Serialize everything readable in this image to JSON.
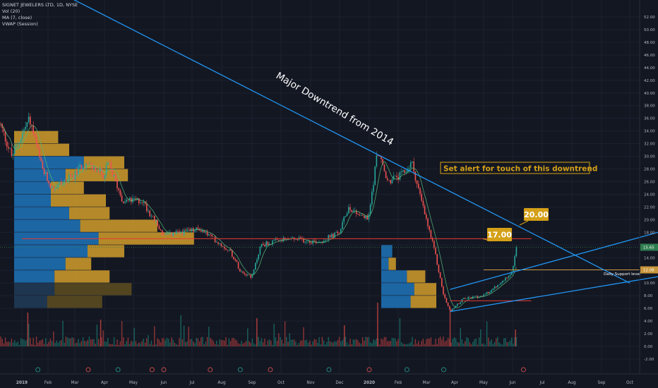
{
  "header": {
    "symbol": "SIGNET JEWELERS LTD, 1D, NYSE",
    "indicators": [
      "Vol (20)",
      "MA (7, close)",
      "VWAP (Session)"
    ]
  },
  "price_axis": {
    "ticks": [
      "52.00",
      "50.00",
      "48.00",
      "46.00",
      "44.00",
      "42.00",
      "40.00",
      "38.00",
      "36.00",
      "34.00",
      "32.00",
      "30.00",
      "28.00",
      "26.00",
      "24.00",
      "22.00",
      "20.00",
      "18.00",
      "16.00",
      "14.00",
      "12.00",
      "10.00",
      "8.00",
      "6.00",
      "4.00",
      "2.00",
      "0.00",
      "-2.00"
    ],
    "current_price": "15.65",
    "support_price": "12.08"
  },
  "time_axis": {
    "labels": [
      "2019",
      "Feb",
      "Mar",
      "Apr",
      "May",
      "Jun",
      "Jul",
      "Aug",
      "Sep",
      "Oct",
      "Nov",
      "Dec",
      "2020",
      "Feb",
      "Mar",
      "Apr",
      "May",
      "Jun",
      "Jul",
      "Aug",
      "Sep",
      "Oct"
    ]
  },
  "annotations": {
    "downtrend_label": "Major Downtrend from 2014",
    "alert_text": "Set alert for touch of this downtrend",
    "target_1": "17.00",
    "target_2": "20.00",
    "support_label": "Daily Support level"
  },
  "colors": {
    "background": "#131722",
    "up_candle": "#26a69a",
    "down_candle": "#ef5350",
    "trendline": "#2196f3",
    "resistance": "#e53935",
    "support": "#c8963c",
    "label_bg": "#d4a017",
    "vp_up": "#1e6fb3",
    "vp_down": "#c8962a",
    "ma": "#56b87a"
  },
  "chart_data": {
    "type": "candlestick",
    "symbol": "SIGNET JEWELERS LTD",
    "timeframe": "1D",
    "exchange": "NYSE",
    "y_range": [
      -3,
      54
    ],
    "price_path": [
      {
        "t": "2018-12-01",
        "price": 37
      },
      {
        "t": "2018-12-20",
        "price": 30
      },
      {
        "t": "2019-01-10",
        "price": 36
      },
      {
        "t": "2019-01-25",
        "price": 28
      },
      {
        "t": "2019-02-05",
        "price": 25
      },
      {
        "t": "2019-03-01",
        "price": 27
      },
      {
        "t": "2019-03-10",
        "price": 29
      },
      {
        "t": "2019-04-01",
        "price": 27
      },
      {
        "t": "2019-04-05",
        "price": 29
      },
      {
        "t": "2019-04-20",
        "price": 23
      },
      {
        "t": "2019-05-10",
        "price": 23
      },
      {
        "t": "2019-06-01",
        "price": 17.5
      },
      {
        "t": "2019-07-10",
        "price": 18.5
      },
      {
        "t": "2019-08-10",
        "price": 15
      },
      {
        "t": "2019-08-20",
        "price": 12
      },
      {
        "t": "2019-09-01",
        "price": 11
      },
      {
        "t": "2019-09-10",
        "price": 16
      },
      {
        "t": "2019-10-10",
        "price": 17
      },
      {
        "t": "2019-11-10",
        "price": 16.5
      },
      {
        "t": "2019-12-01",
        "price": 18
      },
      {
        "t": "2019-12-10",
        "price": 22
      },
      {
        "t": "2019-12-31",
        "price": 20
      },
      {
        "t": "2020-01-10",
        "price": 31
      },
      {
        "t": "2020-01-20",
        "price": 26
      },
      {
        "t": "2020-02-05",
        "price": 27
      },
      {
        "t": "2020-02-15",
        "price": 29
      },
      {
        "t": "2020-02-28",
        "price": 21
      },
      {
        "t": "2020-03-10",
        "price": 15
      },
      {
        "t": "2020-03-20",
        "price": 8
      },
      {
        "t": "2020-03-27",
        "price": 5.5
      },
      {
        "t": "2020-04-10",
        "price": 7.5
      },
      {
        "t": "2020-05-01",
        "price": 8
      },
      {
        "t": "2020-05-20",
        "price": 10
      },
      {
        "t": "2020-06-01",
        "price": 12
      },
      {
        "t": "2020-06-05",
        "price": 15.65
      }
    ],
    "volume_profile_2019": [
      {
        "price": 33,
        "up": 0.0,
        "down": 0.24
      },
      {
        "price": 31,
        "up": 0.0,
        "down": 0.3
      },
      {
        "price": 29,
        "up": 0.38,
        "down": 0.22
      },
      {
        "price": 27,
        "up": 0.28,
        "down": 0.34
      },
      {
        "price": 25,
        "up": 0.2,
        "down": 0.18
      },
      {
        "price": 23,
        "up": 0.2,
        "down": 0.3
      },
      {
        "price": 21,
        "up": 0.3,
        "down": 0.22
      },
      {
        "price": 19,
        "up": 0.36,
        "down": 0.42
      },
      {
        "price": 17,
        "up": 0.46,
        "down": 0.52
      },
      {
        "price": 15,
        "up": 0.4,
        "down": 0.2
      },
      {
        "price": 13,
        "up": 0.28,
        "down": 0.14
      },
      {
        "price": 11,
        "up": 0.22,
        "down": 0.3
      },
      {
        "price": 9,
        "up": 0.22,
        "down": 0.42
      },
      {
        "price": 7,
        "up": 0.18,
        "down": 0.3
      }
    ],
    "volume_profile_2020": [
      {
        "price": 15,
        "up": 0.06,
        "down": 0.0
      },
      {
        "price": 13,
        "up": 0.04,
        "down": 0.04
      },
      {
        "price": 11,
        "up": 0.14,
        "down": 0.1
      },
      {
        "price": 9,
        "up": 0.18,
        "down": 0.12
      },
      {
        "price": 7,
        "up": 0.16,
        "down": 0.14
      }
    ],
    "downtrend_line": [
      {
        "t": "2018-12-01",
        "price": 61
      },
      {
        "t": "2020-10-01",
        "price": 10
      }
    ],
    "channel_upper": [
      {
        "t": "2020-03-27",
        "price": 9
      },
      {
        "t": "2020-10-31",
        "price": 18
      }
    ],
    "channel_lower": [
      {
        "t": "2020-03-27",
        "price": 5.5
      },
      {
        "t": "2020-10-31",
        "price": 11
      }
    ],
    "resistance_17": {
      "price": 17.0,
      "from": "2019-01-01",
      "to": "2020-06-20"
    },
    "support_12": {
      "price": 12.08,
      "from": "2020-05-01",
      "to": "2020-11-10"
    },
    "current_price": 15.65
  }
}
